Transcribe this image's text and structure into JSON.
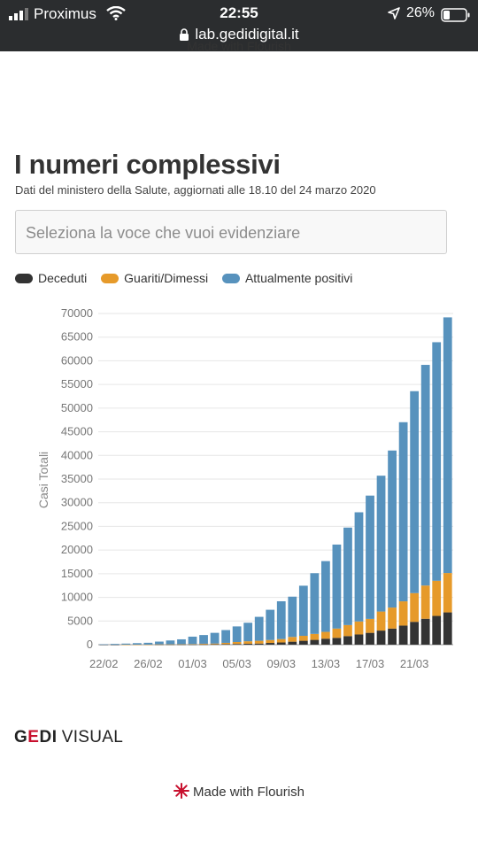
{
  "statusbar": {
    "carrier": "Proximus",
    "time": "22:55",
    "battery": "26%",
    "url": "lab.gedidigital.it"
  },
  "flourish_top": "Made with Flourish",
  "header": {
    "title": "I numeri complessivi",
    "subtitle": "Dati del ministero della Salute, aggiornati alle 18.10 del 24 marzo 2020"
  },
  "select": {
    "placeholder": "Seleziona la voce che vuoi evidenziare"
  },
  "colors": {
    "deceduti": "#333333",
    "guariti": "#e69a2a",
    "positivi": "#5792bd"
  },
  "legend": [
    {
      "label": "Deceduti",
      "color": "#333333"
    },
    {
      "label": "Guariti/Dimessi",
      "color": "#e69a2a"
    },
    {
      "label": "Attualmente positivi",
      "color": "#5792bd"
    }
  ],
  "chart_data": {
    "type": "bar",
    "stacked": true,
    "ylabel": "Casi Totali",
    "ylim": [
      0,
      70000
    ],
    "yticks": [
      0,
      5000,
      10000,
      15000,
      20000,
      25000,
      30000,
      35000,
      40000,
      45000,
      50000,
      55000,
      60000,
      65000,
      70000
    ],
    "x_tick_labels": [
      "22/02",
      "26/02",
      "01/03",
      "05/03",
      "09/03",
      "13/03",
      "17/03",
      "21/03"
    ],
    "categories": [
      "22/02",
      "23/02",
      "24/02",
      "25/02",
      "26/02",
      "27/02",
      "28/02",
      "29/02",
      "01/03",
      "02/03",
      "03/03",
      "04/03",
      "05/03",
      "06/03",
      "07/03",
      "08/03",
      "09/03",
      "10/03",
      "11/03",
      "12/03",
      "13/03",
      "14/03",
      "15/03",
      "16/03",
      "17/03",
      "18/03",
      "19/03",
      "20/03",
      "21/03",
      "22/03",
      "23/03",
      "24/03"
    ],
    "series": [
      {
        "name": "Deceduti",
        "values": [
          2,
          6,
          7,
          10,
          12,
          17,
          21,
          29,
          34,
          52,
          79,
          107,
          148,
          197,
          233,
          366,
          463,
          631,
          827,
          1016,
          1266,
          1441,
          1809,
          2158,
          2503,
          2978,
          3405,
          4032,
          4825,
          5476,
          6077,
          6820
        ]
      },
      {
        "name": "Guariti/Dimessi",
        "values": [
          0,
          0,
          1,
          1,
          3,
          45,
          46,
          50,
          83,
          149,
          160,
          276,
          414,
          523,
          589,
          622,
          724,
          1004,
          1045,
          1258,
          1439,
          1966,
          2335,
          2749,
          2941,
          4025,
          4440,
          5129,
          6072,
          7024,
          7432,
          8326
        ]
      },
      {
        "name": "Attualmente positivi",
        "values": [
          77,
          150,
          221,
          311,
          385,
          588,
          821,
          1049,
          1577,
          1835,
          2263,
          2706,
          3296,
          3916,
          5061,
          6387,
          7985,
          8514,
          10590,
          12839,
          14955,
          17750,
          20603,
          23073,
          26062,
          28710,
          33190,
          37860,
          42681,
          46638,
          50418,
          54030
        ]
      }
    ]
  },
  "footer": {
    "brand": "GEDI",
    "brand_sub": "VISUAL",
    "made_with": "Made with Flourish"
  }
}
